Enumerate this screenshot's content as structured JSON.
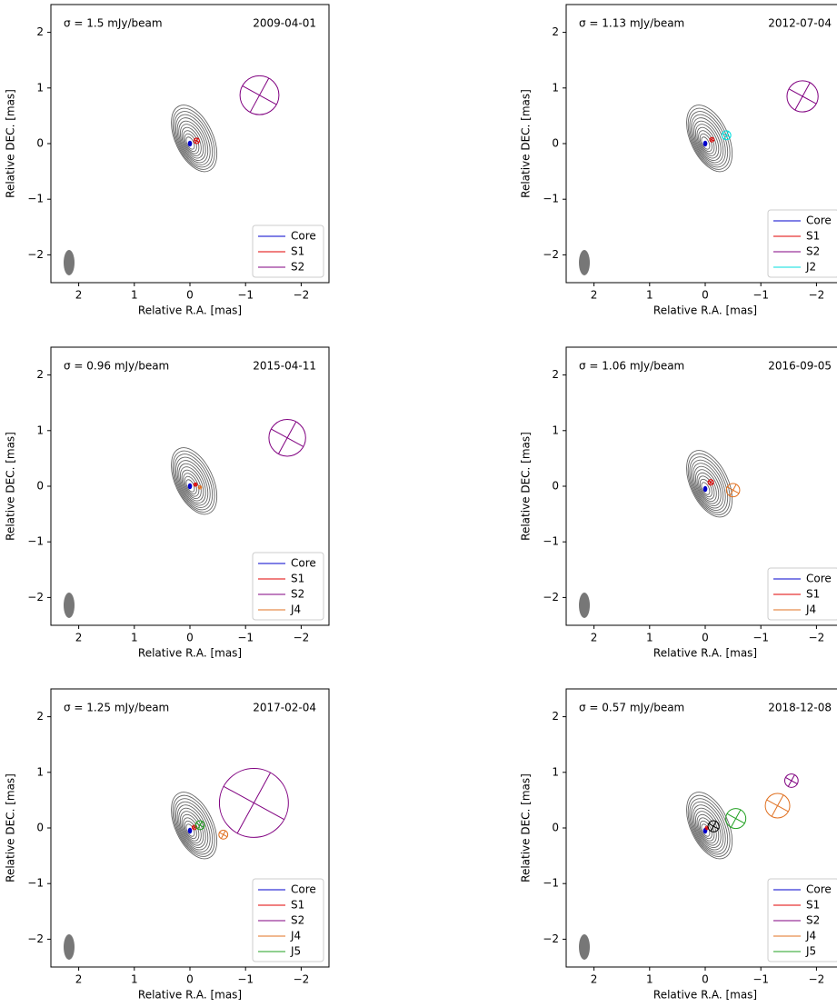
{
  "chart_data": [
    {
      "type": "scatter",
      "sigma_label": "σ = 1.5 mJy/beam",
      "date": "2009-04-01",
      "x_label": "Relative R.A. [mas]",
      "y_label": "Relative DEC. [mas]",
      "xlim": [
        2.5,
        -2.5
      ],
      "ylim": [
        -2.5,
        2.5
      ],
      "xticks": [
        2,
        1,
        0,
        {
          "value": -1,
          "label": "−1"
        },
        {
          "value": -2,
          "label": "−2"
        }
      ],
      "yticks": [
        {
          "value": -2,
          "label": "−2"
        },
        {
          "value": -1,
          "label": "−1"
        },
        0,
        1,
        2
      ],
      "legend": "lower right",
      "series": [
        {
          "name": "Core",
          "color": "#0000cc",
          "x": 0,
          "y": 0,
          "size": 0.03
        },
        {
          "name": "S1",
          "color": "#e00000",
          "x": -0.12,
          "y": 0.05,
          "size": 0.05
        },
        {
          "name": "S2",
          "color": "#800080",
          "x": -1.25,
          "y": 0.87,
          "size": 0.35
        }
      ]
    },
    {
      "type": "scatter",
      "sigma_label": "σ = 1.13 mJy/beam",
      "date": "2012-07-04",
      "x_label": "Relative R.A. [mas]",
      "y_label": "Relative DEC. [mas]",
      "xlim": [
        2.5,
        -2.5
      ],
      "ylim": [
        -2.5,
        2.5
      ],
      "xticks": [
        2,
        1,
        0,
        {
          "value": -1,
          "label": "−1"
        },
        {
          "value": -2,
          "label": "−2"
        }
      ],
      "yticks": [
        {
          "value": -2,
          "label": "−2"
        },
        {
          "value": -1,
          "label": "−1"
        },
        0,
        1,
        2
      ],
      "legend": "lower right",
      "series": [
        {
          "name": "Core",
          "color": "#0000cc",
          "x": 0,
          "y": 0,
          "size": 0.03
        },
        {
          "name": "S1",
          "color": "#e00000",
          "x": -0.12,
          "y": 0.07,
          "size": 0.04
        },
        {
          "name": "S2",
          "color": "#800080",
          "x": -1.75,
          "y": 0.85,
          "size": 0.28
        },
        {
          "name": "J2",
          "color": "#00dddd",
          "x": -0.38,
          "y": 0.15,
          "size": 0.08
        }
      ]
    },
    {
      "type": "scatter",
      "sigma_label": "σ = 0.96 mJy/beam",
      "date": "2015-04-11",
      "x_label": "Relative R.A. [mas]",
      "y_label": "Relative DEC. [mas]",
      "xlim": [
        2.5,
        -2.5
      ],
      "ylim": [
        -2.5,
        2.5
      ],
      "xticks": [
        2,
        1,
        0,
        {
          "value": -1,
          "label": "−1"
        },
        {
          "value": -2,
          "label": "−2"
        }
      ],
      "yticks": [
        {
          "value": -2,
          "label": "−2"
        },
        {
          "value": -1,
          "label": "−1"
        },
        0,
        1,
        2
      ],
      "legend": "lower right",
      "series": [
        {
          "name": "Core",
          "color": "#0000cc",
          "x": 0,
          "y": 0,
          "size": 0.03
        },
        {
          "name": "S1",
          "color": "#e00000",
          "x": -0.1,
          "y": 0.03,
          "size": 0.03
        },
        {
          "name": "S2",
          "color": "#800080",
          "x": -1.75,
          "y": 0.87,
          "size": 0.33
        },
        {
          "name": "J4",
          "color": "#e07020",
          "x": -0.18,
          "y": -0.02,
          "size": 0.03
        }
      ]
    },
    {
      "type": "scatter",
      "sigma_label": "σ = 1.06 mJy/beam",
      "date": "2016-09-05",
      "x_label": "Relative R.A. [mas]",
      "y_label": "Relative DEC. [mas]",
      "xlim": [
        2.5,
        -2.5
      ],
      "ylim": [
        -2.5,
        2.5
      ],
      "xticks": [
        2,
        1,
        0,
        {
          "value": -1,
          "label": "−1"
        },
        {
          "value": -2,
          "label": "−2"
        }
      ],
      "yticks": [
        {
          "value": -2,
          "label": "−2"
        },
        {
          "value": -1,
          "label": "−1"
        },
        0,
        1,
        2
      ],
      "legend": "lower right",
      "series": [
        {
          "name": "Core",
          "color": "#0000cc",
          "x": 0,
          "y": -0.05,
          "size": 0.03
        },
        {
          "name": "S1",
          "color": "#e00000",
          "x": -0.1,
          "y": 0.07,
          "size": 0.05
        },
        {
          "name": "J4",
          "color": "#e07020",
          "x": -0.5,
          "y": -0.07,
          "size": 0.12
        }
      ]
    },
    {
      "type": "scatter",
      "sigma_label": "σ = 1.25 mJy/beam",
      "date": "2017-02-04",
      "x_label": "Relative R.A. [mas]",
      "y_label": "Relative DEC. [mas]",
      "xlim": [
        2.5,
        -2.5
      ],
      "ylim": [
        -2.5,
        2.5
      ],
      "xticks": [
        2,
        1,
        0,
        {
          "value": -1,
          "label": "−1"
        },
        {
          "value": -2,
          "label": "−2"
        }
      ],
      "yticks": [
        {
          "value": -2,
          "label": "−2"
        },
        {
          "value": -1,
          "label": "−1"
        },
        0,
        1,
        2
      ],
      "legend": "lower right",
      "series": [
        {
          "name": "Core",
          "color": "#0000cc",
          "x": 0,
          "y": -0.05,
          "size": 0.03
        },
        {
          "name": "S1",
          "color": "#e00000",
          "x": -0.08,
          "y": 0.01,
          "size": 0.04
        },
        {
          "name": "S2",
          "color": "#800080",
          "x": -1.15,
          "y": 0.45,
          "size": 0.62
        },
        {
          "name": "J4",
          "color": "#e07020",
          "x": -0.6,
          "y": -0.12,
          "size": 0.08
        },
        {
          "name": "J5",
          "color": "#20a020",
          "x": -0.18,
          "y": 0.05,
          "size": 0.08
        }
      ]
    },
    {
      "type": "scatter",
      "sigma_label": "σ = 0.57 mJy/beam",
      "date": "2018-12-08",
      "x_label": "Relative R.A. [mas]",
      "y_label": "Relative DEC. [mas]",
      "xlim": [
        2.5,
        -2.5
      ],
      "ylim": [
        -2.5,
        2.5
      ],
      "xticks": [
        2,
        1,
        0,
        {
          "value": -1,
          "label": "−1"
        },
        {
          "value": -2,
          "label": "−2"
        }
      ],
      "yticks": [
        {
          "value": -2,
          "label": "−2"
        },
        {
          "value": -1,
          "label": "−1"
        },
        0,
        1,
        2
      ],
      "legend": "lower right",
      "series": [
        {
          "name": "Core",
          "color": "#0000cc",
          "x": 0,
          "y": -0.05,
          "size": 0.03
        },
        {
          "name": "S1",
          "color": "#e00000",
          "x": -0.03,
          "y": 0,
          "size": 0.03
        },
        {
          "name": "S2",
          "color": "#800080",
          "x": -1.55,
          "y": 0.85,
          "size": 0.12
        },
        {
          "name": "J4",
          "color": "#e07020",
          "x": -1.3,
          "y": 0.4,
          "size": 0.22
        },
        {
          "name": "J5",
          "color": "#20a020",
          "x": -0.55,
          "y": 0.17,
          "size": 0.18
        },
        {
          "color": "#000000",
          "x": -0.15,
          "y": 0.03,
          "size": 0.1
        }
      ]
    }
  ]
}
